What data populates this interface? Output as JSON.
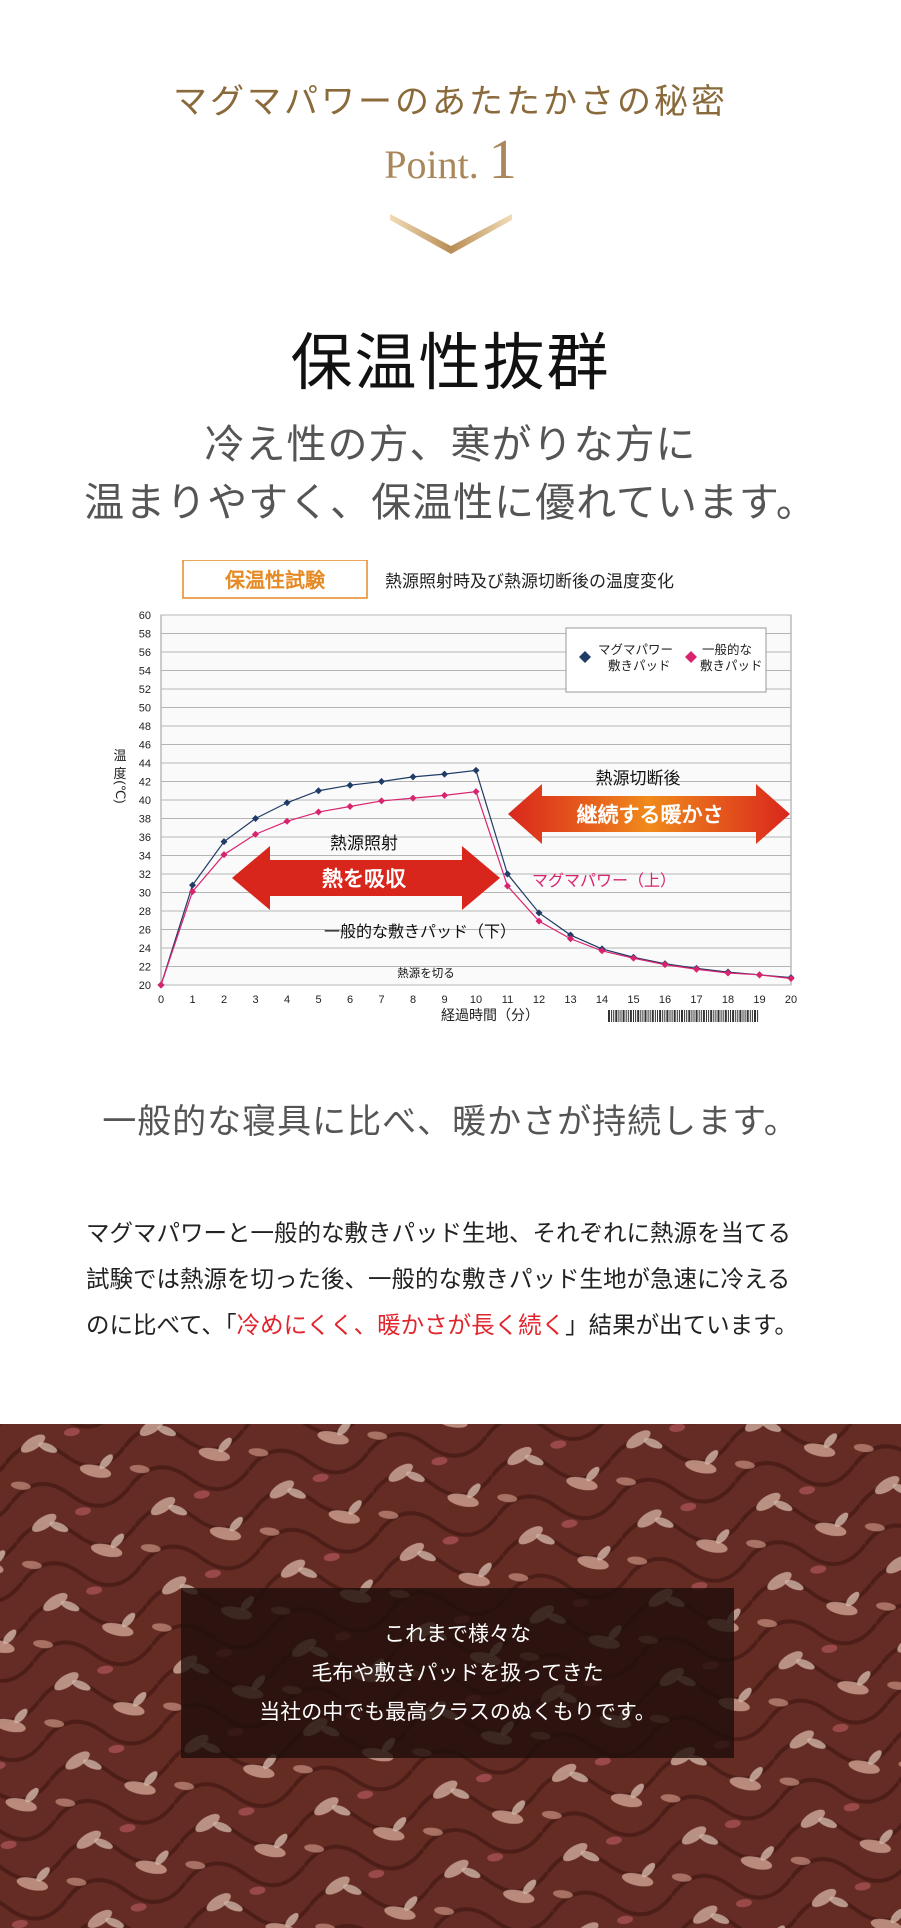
{
  "header": {
    "kicker": "マグマパワーのあたたかさの秘密",
    "point_word": "Point.",
    "point_number": "1"
  },
  "heading": "保温性抜群",
  "subheading": {
    "line1": "冷え性の方、寒がりな方に",
    "line2": "温まりやすく、保温性に優れています。"
  },
  "chart_data": {
    "type": "line",
    "title_box": "保温性試験",
    "title": "熱源照射時及び熱源切断後の温度変化",
    "xlabel": "経過時間（分）",
    "ylabel": "温度(℃)",
    "x": [
      0,
      1,
      2,
      3,
      4,
      5,
      6,
      7,
      8,
      9,
      10,
      11,
      12,
      13,
      14,
      15,
      16,
      17,
      18,
      19,
      20
    ],
    "xlim": [
      0,
      20
    ],
    "ylim": [
      20,
      60
    ],
    "yticks": [
      20,
      22,
      24,
      26,
      28,
      30,
      32,
      34,
      36,
      38,
      40,
      42,
      44,
      46,
      48,
      50,
      52,
      54,
      56,
      58,
      60
    ],
    "grid": true,
    "legend_position": "top-right",
    "series": [
      {
        "name": "マグマパワー 敷きパッド",
        "legend_lines": [
          "マグマパワー",
          "敷きパッド"
        ],
        "color": "#1f3b66",
        "marker": "diamond",
        "values": [
          20,
          30.8,
          35.5,
          38,
          39.7,
          41,
          41.6,
          42,
          42.5,
          42.8,
          43.2,
          32,
          27.8,
          25.4,
          23.9,
          23,
          22.3,
          21.8,
          21.4,
          21.1,
          20.8
        ]
      },
      {
        "name": "一般的な 敷きパッド",
        "legend_lines": [
          "一般的な",
          "敷きパッド"
        ],
        "color": "#d8246e",
        "marker": "diamond",
        "values": [
          20,
          30.1,
          34.1,
          36.3,
          37.7,
          38.7,
          39.3,
          39.9,
          40.2,
          40.5,
          40.9,
          30.7,
          26.9,
          25,
          23.7,
          22.9,
          22.2,
          21.7,
          21.3,
          21.1,
          20.7
        ]
      }
    ],
    "annotations": {
      "heat_on_label": "熱源照射",
      "heat_on_arrow": "熱を吸収",
      "heat_off_label": "熱源切断後",
      "heat_off_arrow": "継続する暖かさ",
      "upper_line_label": "マグマパワー（上）",
      "lower_line_label": "一般的な敷きパッド（下）",
      "switch_off_label": "熱源を切る"
    }
  },
  "caption": "一般的な寝具に比べ、暖かさが持続します。",
  "body": {
    "line1": "マグマパワーと一般的な敷きパッド生地、それぞれに熱源を当てる",
    "line2": "試験では熱源を切った後、一般的な敷きパッド生地が急速に冷える",
    "line3_pre": "のに比べて、「",
    "line3_highlight": "冷めにくく、暖かさが長く続く",
    "line3_post": "」結果が出ています。"
  },
  "photo_overlay": {
    "line1": "これまで様々な",
    "line2": "毛布や敷きパッドを扱ってきた",
    "line3": "当社の中でも最高クラスのぬくもりです。"
  },
  "colors": {
    "gold": "#a9875a",
    "arrow_red": "#d9261c",
    "arrow_orange": "#f08a1c",
    "highlight_red": "#e2242c"
  }
}
